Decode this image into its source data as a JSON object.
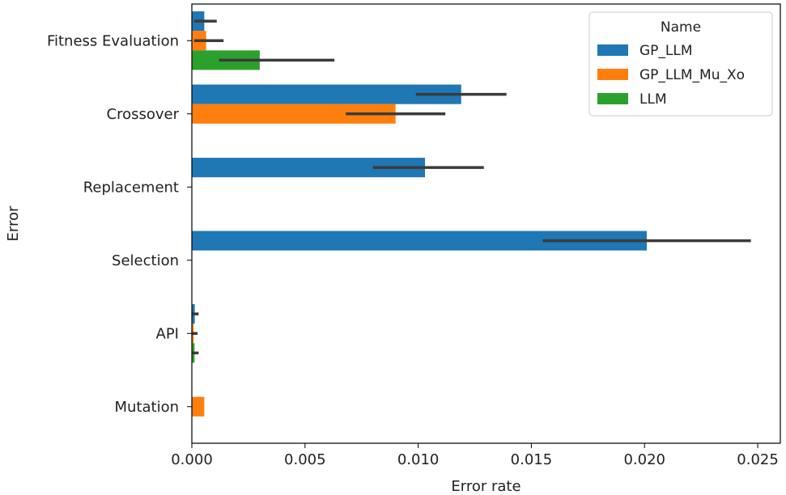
{
  "chart_data": {
    "type": "bar",
    "orientation": "horizontal",
    "xlabel": "Error rate",
    "ylabel": "Error",
    "xlim": [
      0,
      0.026
    ],
    "xticks": [
      "0.000",
      "0.005",
      "0.010",
      "0.015",
      "0.020",
      "0.025"
    ],
    "xtick_values": [
      0,
      0.005,
      0.01,
      0.015,
      0.02,
      0.025
    ],
    "grid": false,
    "categories": [
      "Fitness Evaluation",
      "Crossover",
      "Replacement",
      "Selection",
      "API",
      "Mutation"
    ],
    "legend": {
      "title": "Name",
      "placement": "top-right"
    },
    "series": [
      {
        "name": "GP_LLM",
        "color": "#1f77b4",
        "values": [
          0.00055,
          0.0119,
          0.0103,
          0.0201,
          0.00013,
          0
        ],
        "ci_low": [
          0.0001,
          0.0099,
          0.008,
          0.0155,
          0.0,
          0
        ],
        "ci_high": [
          0.0011,
          0.0139,
          0.0129,
          0.0247,
          0.0003,
          0
        ]
      },
      {
        "name": "GP_LLM_Mu_Xo",
        "color": "#ff7f0e",
        "values": [
          0.00063,
          0.009,
          0,
          0,
          8e-05,
          0.00055
        ],
        "ci_low": [
          0.0001,
          0.0068,
          0,
          0,
          0.0,
          0.00055
        ],
        "ci_high": [
          0.0014,
          0.0112,
          0,
          0,
          0.00025,
          0.00055
        ]
      },
      {
        "name": "LLM",
        "color": "#2ca02c",
        "values": [
          0.003,
          0,
          0,
          0,
          0.00012,
          0
        ],
        "ci_low": [
          0.0012,
          0,
          0,
          0,
          0.0,
          0
        ],
        "ci_high": [
          0.0063,
          0,
          0,
          0,
          0.0003,
          0
        ]
      }
    ]
  }
}
